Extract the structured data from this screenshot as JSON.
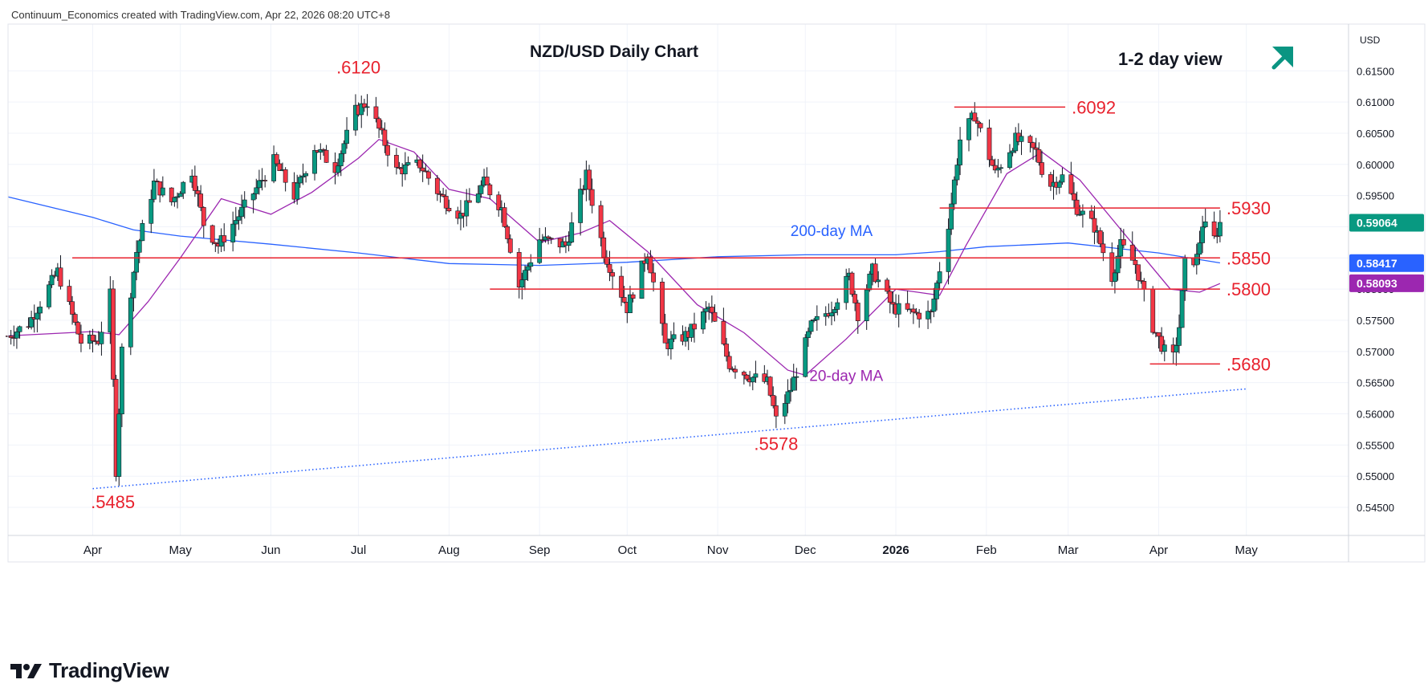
{
  "header": {
    "credit": "Continuum_Economics created with TradingView.com, Apr 22, 2026 08:20 UTC+8"
  },
  "footer": {
    "brand": "TradingView"
  },
  "chart_data": {
    "type": "candlestick",
    "title": "NZD/USD Daily Chart",
    "view_label": "1-2 day view",
    "view_direction": "up",
    "currency": "USD",
    "y_ticks": [
      "0.61500",
      "0.61000",
      "0.60500",
      "0.60000",
      "0.59500",
      "0.59000",
      "0.58500",
      "0.58000",
      "0.57500",
      "0.57000",
      "0.56500",
      "0.56000",
      "0.55500",
      "0.55000",
      "0.54500"
    ],
    "y_tick_values": [
      0.615,
      0.61,
      0.605,
      0.6,
      0.595,
      0.59,
      0.585,
      0.58,
      0.575,
      0.57,
      0.565,
      0.56,
      0.555,
      0.55,
      0.545
    ],
    "ylim": [
      0.5405,
      0.6225
    ],
    "x_ticks": [
      {
        "label": "Apr",
        "date": "2025-04-01"
      },
      {
        "label": "May",
        "date": "2025-05-01"
      },
      {
        "label": "Jun",
        "date": "2025-06-01"
      },
      {
        "label": "Jul",
        "date": "2025-07-01"
      },
      {
        "label": "Aug",
        "date": "2025-08-01"
      },
      {
        "label": "Sep",
        "date": "2025-09-01"
      },
      {
        "label": "Oct",
        "date": "2025-10-01"
      },
      {
        "label": "Nov",
        "date": "2025-11-01"
      },
      {
        "label": "Dec",
        "date": "2025-12-01"
      },
      {
        "label": "2026",
        "date": "2026-01-01"
      },
      {
        "label": "Feb",
        "date": "2026-02-01"
      },
      {
        "label": "Mar",
        "date": "2026-03-01"
      },
      {
        "label": "Apr",
        "date": "2026-04-01"
      },
      {
        "label": "May",
        "date": "2026-05-01"
      }
    ],
    "xlim": [
      "2025-03-03",
      "2026-06-05"
    ],
    "price_labels": [
      {
        "text": "0.59064",
        "value": 0.59064,
        "color": "#089981"
      },
      {
        "text": "0.58417",
        "value": 0.58417,
        "color": "#2962ff"
      },
      {
        "text": "0.58093",
        "value": 0.58093,
        "color": "#9c27b0"
      }
    ],
    "levels": [
      {
        "label": ".6092",
        "value": 0.6092,
        "from": "2026-01-21",
        "to": "2026-02-28"
      },
      {
        "label": ".5930",
        "value": 0.593,
        "from": "2026-01-16",
        "to": "2026-04-22"
      },
      {
        "label": ".5850",
        "value": 0.585,
        "from": "2025-03-25",
        "to": "2026-04-22"
      },
      {
        "label": ".5800",
        "value": 0.58,
        "from": "2025-08-15",
        "to": "2026-04-22"
      },
      {
        "label": ".5680",
        "value": 0.568,
        "from": "2026-03-29",
        "to": "2026-04-22"
      }
    ],
    "point_labels": [
      {
        "label": ".6120",
        "date": "2025-07-01",
        "value": 0.612
      },
      {
        "label": ".5485",
        "date": "2025-04-09",
        "value": 0.5485
      },
      {
        "label": ".5578",
        "date": "2025-11-21",
        "value": 0.5578
      }
    ],
    "trendline": {
      "from": {
        "date": "2025-04-01",
        "value": 0.548
      },
      "to": {
        "date": "2026-05-01",
        "value": 0.564
      }
    },
    "ma_labels": [
      {
        "text": "200-day MA",
        "color": "#2962ff",
        "date": "2025-12-10",
        "value": 0.5885
      },
      {
        "text": "20-day MA",
        "color": "#9c27b0",
        "date": "2025-12-15",
        "value": 0.5653
      }
    ],
    "colors": {
      "up": "#089981",
      "down": "#f23645",
      "level": "#e8212d",
      "ma20": "#9c27b0",
      "ma200": "#2962ff",
      "trend": "#2962ff",
      "arrow": "#0a9582"
    },
    "ma200": [
      [
        "2025-03-03",
        0.5948
      ],
      [
        "2025-04-01",
        0.5915
      ],
      [
        "2025-04-15",
        0.5895
      ],
      [
        "2025-05-01",
        0.5885
      ],
      [
        "2025-06-01",
        0.5872
      ],
      [
        "2025-07-01",
        0.5858
      ],
      [
        "2025-08-01",
        0.5841
      ],
      [
        "2025-09-01",
        0.5838
      ],
      [
        "2025-10-01",
        0.5843
      ],
      [
        "2025-11-01",
        0.5852
      ],
      [
        "2025-12-01",
        0.5855
      ],
      [
        "2026-01-01",
        0.5855
      ],
      [
        "2026-01-16",
        0.586
      ],
      [
        "2026-02-01",
        0.5868
      ],
      [
        "2026-03-01",
        0.5874
      ],
      [
        "2026-04-01",
        0.5858
      ],
      [
        "2026-04-22",
        0.5842
      ]
    ],
    "ma20": [
      [
        "2025-03-03",
        0.5725
      ],
      [
        "2025-04-01",
        0.5732
      ],
      [
        "2025-04-10",
        0.5727
      ],
      [
        "2025-04-20",
        0.578
      ],
      [
        "2025-05-01",
        0.585
      ],
      [
        "2025-05-15",
        0.5945
      ],
      [
        "2025-06-01",
        0.592
      ],
      [
        "2025-06-15",
        0.5955
      ],
      [
        "2025-07-01",
        0.601
      ],
      [
        "2025-07-08",
        0.604
      ],
      [
        "2025-07-20",
        0.602
      ],
      [
        "2025-08-01",
        0.596
      ],
      [
        "2025-08-15",
        0.5945
      ],
      [
        "2025-09-01",
        0.5875
      ],
      [
        "2025-09-15",
        0.589
      ],
      [
        "2025-09-25",
        0.591
      ],
      [
        "2025-10-08",
        0.586
      ],
      [
        "2025-10-25",
        0.5775
      ],
      [
        "2025-11-10",
        0.573
      ],
      [
        "2025-11-25",
        0.567
      ],
      [
        "2025-12-01",
        0.5662
      ],
      [
        "2025-12-15",
        0.572
      ],
      [
        "2026-01-01",
        0.58
      ],
      [
        "2026-01-16",
        0.579
      ],
      [
        "2026-01-25",
        0.587
      ],
      [
        "2026-02-08",
        0.5985
      ],
      [
        "2026-02-20",
        0.602
      ],
      [
        "2026-03-05",
        0.5975
      ],
      [
        "2026-03-20",
        0.589
      ],
      [
        "2026-04-05",
        0.58
      ],
      [
        "2026-04-15",
        0.5795
      ],
      [
        "2026-04-22",
        0.5809
      ]
    ],
    "anchors": [
      [
        "2025-03-03",
        0.5725
      ],
      [
        "2025-03-10",
        0.5745
      ],
      [
        "2025-03-20",
        0.5828
      ],
      [
        "2025-03-28",
        0.5715
      ],
      [
        "2025-04-03",
        0.5718
      ],
      [
        "2025-04-07",
        0.579
      ],
      [
        "2025-04-09",
        0.551
      ],
      [
        "2025-04-11",
        0.5702
      ],
      [
        "2025-04-16",
        0.586
      ],
      [
        "2025-04-22",
        0.597
      ],
      [
        "2025-04-28",
        0.594
      ],
      [
        "2025-05-05",
        0.599
      ],
      [
        "2025-05-09",
        0.5905
      ],
      [
        "2025-05-14",
        0.587
      ],
      [
        "2025-05-22",
        0.5925
      ],
      [
        "2025-06-02",
        0.6005
      ],
      [
        "2025-06-09",
        0.595
      ],
      [
        "2025-06-16",
        0.6028
      ],
      [
        "2025-06-23",
        0.5995
      ],
      [
        "2025-06-30",
        0.6085
      ],
      [
        "2025-07-04",
        0.61
      ],
      [
        "2025-07-14",
        0.599
      ],
      [
        "2025-07-22",
        0.6
      ],
      [
        "2025-07-29",
        0.595
      ],
      [
        "2025-08-05",
        0.5918
      ],
      [
        "2025-08-13",
        0.597
      ],
      [
        "2025-08-19",
        0.593
      ],
      [
        "2025-08-25",
        0.5805
      ],
      [
        "2025-09-01",
        0.588
      ],
      [
        "2025-09-10",
        0.587
      ],
      [
        "2025-09-17",
        0.5982
      ],
      [
        "2025-09-23",
        0.586
      ],
      [
        "2025-10-01",
        0.577
      ],
      [
        "2025-10-08",
        0.586
      ],
      [
        "2025-10-14",
        0.571
      ],
      [
        "2025-10-22",
        0.5728
      ],
      [
        "2025-10-29",
        0.577
      ],
      [
        "2025-11-05",
        0.568
      ],
      [
        "2025-11-12",
        0.566
      ],
      [
        "2025-11-18",
        0.565
      ],
      [
        "2025-11-21",
        0.559
      ],
      [
        "2025-11-26",
        0.564
      ],
      [
        "2025-12-03",
        0.574
      ],
      [
        "2025-12-10",
        0.577
      ],
      [
        "2025-12-16",
        0.582
      ],
      [
        "2025-12-19",
        0.576
      ],
      [
        "2025-12-24",
        0.583
      ],
      [
        "2025-12-31",
        0.577
      ],
      [
        "2026-01-08",
        0.576
      ],
      [
        "2026-01-13",
        0.576
      ],
      [
        "2026-01-19",
        0.5905
      ],
      [
        "2026-01-23",
        0.604
      ],
      [
        "2026-01-28",
        0.608
      ],
      [
        "2026-02-04",
        0.5985
      ],
      [
        "2026-02-11",
        0.604
      ],
      [
        "2026-02-18",
        0.602
      ],
      [
        "2026-02-22",
        0.5965
      ],
      [
        "2026-02-27",
        0.598
      ],
      [
        "2026-03-04",
        0.593
      ],
      [
        "2026-03-10",
        0.59
      ],
      [
        "2026-03-16",
        0.582
      ],
      [
        "2026-03-19",
        0.587
      ],
      [
        "2026-03-24",
        0.584
      ],
      [
        "2026-03-30",
        0.574
      ],
      [
        "2026-04-03",
        0.57
      ],
      [
        "2026-04-06",
        0.569
      ],
      [
        "2026-04-08",
        0.574
      ],
      [
        "2026-04-10",
        0.584
      ],
      [
        "2026-04-14",
        0.585
      ],
      [
        "2026-04-16",
        0.5905
      ],
      [
        "2026-04-20",
        0.588
      ],
      [
        "2026-04-22",
        0.5906
      ]
    ]
  }
}
